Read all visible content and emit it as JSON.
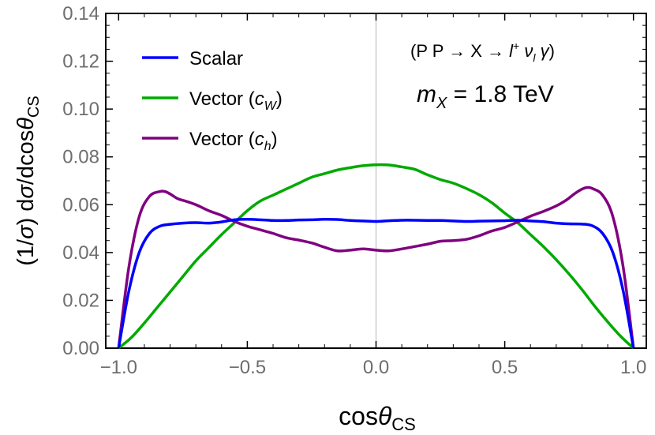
{
  "chart_data": {
    "type": "line",
    "xlabel": "cosθ",
    "xlabel_sub": "CS",
    "ylabel": "(1/σ) dσ/dcosθ",
    "ylabel_sub": "CS",
    "xlim": [
      -1.05,
      1.05
    ],
    "ylim": [
      0,
      0.14
    ],
    "xticks": [
      -1.0,
      -0.5,
      0.0,
      0.5,
      1.0
    ],
    "xtick_labels": [
      "−1.0",
      "−0.5",
      "0.0",
      "0.5",
      "1.0"
    ],
    "yticks": [
      0,
      0.02,
      0.04,
      0.06,
      0.08,
      0.1,
      0.12,
      0.14
    ],
    "ytick_labels": [
      "0.00",
      "0.02",
      "0.04",
      "0.06",
      "0.08",
      "0.10",
      "0.12",
      "0.14"
    ],
    "grid": false,
    "vertical_reference_line_x": 0,
    "legend_placement": "top-left",
    "annotations": {
      "process": "(P P → X → l⁺ ν_l γ)",
      "mass": "m_X = 1.8 TeV"
    },
    "series": [
      {
        "name": "Scalar",
        "color": "#0000ff",
        "x": [
          -1.0,
          -0.96,
          -0.92,
          -0.88,
          -0.84,
          -0.8,
          -0.75,
          -0.7,
          -0.65,
          -0.6,
          -0.55,
          -0.5,
          -0.45,
          -0.4,
          -0.35,
          -0.3,
          -0.25,
          -0.2,
          -0.15,
          -0.1,
          -0.05,
          0.0,
          0.05,
          0.1,
          0.15,
          0.2,
          0.25,
          0.3,
          0.35,
          0.4,
          0.45,
          0.5,
          0.55,
          0.6,
          0.65,
          0.7,
          0.75,
          0.8,
          0.84,
          0.88,
          0.92,
          0.96,
          1.0
        ],
        "y": [
          0.0,
          0.024,
          0.04,
          0.048,
          0.051,
          0.0518,
          0.0523,
          0.0525,
          0.0523,
          0.0528,
          0.0537,
          0.0539,
          0.0537,
          0.0534,
          0.0534,
          0.0536,
          0.0537,
          0.0539,
          0.0538,
          0.0534,
          0.0532,
          0.053,
          0.0533,
          0.0535,
          0.0535,
          0.0534,
          0.0534,
          0.0532,
          0.053,
          0.0531,
          0.0532,
          0.0533,
          0.0535,
          0.0532,
          0.0529,
          0.0523,
          0.052,
          0.0519,
          0.0512,
          0.048,
          0.04,
          0.024,
          0.0
        ]
      },
      {
        "name": "Vector (c_W)",
        "color": "#00aa00",
        "x": [
          -1.0,
          -0.95,
          -0.9,
          -0.85,
          -0.8,
          -0.75,
          -0.7,
          -0.65,
          -0.6,
          -0.55,
          -0.5,
          -0.45,
          -0.4,
          -0.35,
          -0.3,
          -0.25,
          -0.2,
          -0.15,
          -0.1,
          -0.05,
          0.0,
          0.05,
          0.1,
          0.15,
          0.2,
          0.25,
          0.3,
          0.35,
          0.4,
          0.45,
          0.5,
          0.55,
          0.6,
          0.65,
          0.7,
          0.75,
          0.8,
          0.85,
          0.9,
          0.95,
          1.0
        ],
        "y": [
          0.0,
          0.0045,
          0.0105,
          0.017,
          0.0235,
          0.03,
          0.0365,
          0.042,
          0.0475,
          0.0525,
          0.0575,
          0.0615,
          0.064,
          0.0665,
          0.069,
          0.0715,
          0.073,
          0.0745,
          0.0755,
          0.0763,
          0.0767,
          0.0766,
          0.0758,
          0.0748,
          0.0725,
          0.0705,
          0.069,
          0.0668,
          0.0642,
          0.0608,
          0.0565,
          0.0525,
          0.0475,
          0.0425,
          0.037,
          0.031,
          0.0245,
          0.0175,
          0.011,
          0.005,
          0.0
        ]
      },
      {
        "name": "Vector (c_h)",
        "color": "#800080",
        "x": [
          -1.0,
          -0.96,
          -0.92,
          -0.88,
          -0.84,
          -0.82,
          -0.8,
          -0.77,
          -0.74,
          -0.7,
          -0.65,
          -0.6,
          -0.55,
          -0.5,
          -0.45,
          -0.4,
          -0.35,
          -0.3,
          -0.25,
          -0.2,
          -0.15,
          -0.1,
          -0.05,
          0.0,
          0.05,
          0.1,
          0.15,
          0.2,
          0.25,
          0.3,
          0.35,
          0.4,
          0.45,
          0.5,
          0.55,
          0.6,
          0.65,
          0.7,
          0.74,
          0.77,
          0.8,
          0.82,
          0.84,
          0.88,
          0.92,
          0.96,
          1.0
        ],
        "y": [
          0.0,
          0.034,
          0.055,
          0.0635,
          0.0655,
          0.0655,
          0.0645,
          0.0625,
          0.0615,
          0.06,
          0.0575,
          0.0555,
          0.053,
          0.051,
          0.0495,
          0.048,
          0.0462,
          0.0452,
          0.044,
          0.0422,
          0.0407,
          0.041,
          0.0415,
          0.041,
          0.0407,
          0.0415,
          0.0425,
          0.0435,
          0.0447,
          0.045,
          0.0455,
          0.047,
          0.049,
          0.0505,
          0.0528,
          0.0552,
          0.0572,
          0.0595,
          0.062,
          0.0645,
          0.0665,
          0.0672,
          0.0668,
          0.064,
          0.055,
          0.034,
          0.0
        ]
      }
    ]
  }
}
